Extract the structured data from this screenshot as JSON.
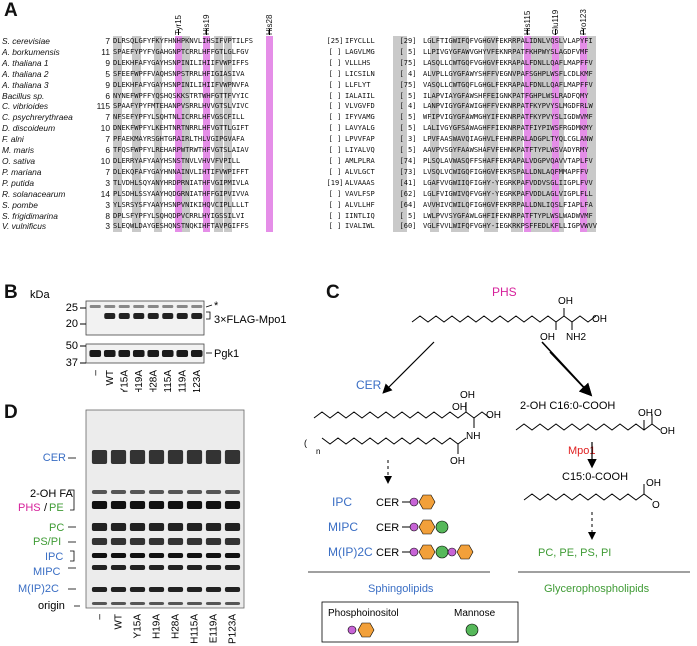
{
  "panels": {
    "a": "A",
    "b": "B",
    "c": "C",
    "d": "D"
  },
  "alignment": {
    "residue_markers": [
      "Tyr15",
      "His19",
      "His28",
      "His115",
      "Glu119",
      "Pro123"
    ],
    "rows": [
      {
        "species": "S. cerevisiae",
        "start": "7",
        "seg1": "DLRSQLGFYFKYFHNHPKNVLIHSIFVPTILFS",
        "gap1": "[25]",
        "seg2": "IFYCLLL",
        "gap2": "[29]",
        "seg3": "LGLFTIGWIFQFVGHGVFEKRRPALIDNLVQSLVLAPYFI"
      },
      {
        "species": "A. borkumensis",
        "start": "11",
        "seg1": "SPAEFYPYFYGAHGNPTCRRLHFFGTLGLFGV",
        "gap1": "[ ]",
        "seg2": "LAGVLMG",
        "gap2": "[ 5]",
        "seg3": "LLPIVGYGFAWVGHYVFEKNRPATFKHPWYSLAGDFVMF"
      },
      {
        "species": "A. thaliana 1",
        "start": "9",
        "seg1": "DLEKHFAFYGAYHSNPINILIHIIFVWPIFFS",
        "gap1": "[ ]",
        "seg2": "VLLLHS",
        "gap2": "[75]",
        "seg3": "LASQLLCWTGQFVGHGVFEKRAPALFDNLLQAFLMAPFFV"
      },
      {
        "species": "A. thaliana 2",
        "start": "5",
        "seg1": "SFEEFWPFFVAQHSNPSTRRLHFIGIASIVA",
        "gap1": "[ ]",
        "seg2": "LICSILN",
        "gap2": "[ 4]",
        "seg3": "ALVPLLGYGFAWYSHFFVEGNVPAFSGHPLWSFLCDLKMF"
      },
      {
        "species": "A. thaliana 3",
        "start": "9",
        "seg1": "DLEKHFAFYGAYHSNPINILIHIIFVWPNVFA",
        "gap1": "[ ]",
        "seg2": "LLFLYT",
        "gap2": "[75]",
        "seg3": "VASQLLCWTGQFLGHGLFEKRAPALFDNLLQAFLMAPFFV"
      },
      {
        "species": "Bacillus sp.",
        "start": "6",
        "seg1": "NYNEFWPFFYQSHQSKKSTRTWHFGTTFVYIC",
        "gap1": "[ ]",
        "seg2": "IALAIIL",
        "gap2": "[ 5]",
        "seg3": "ILAPVIAYGFAWSHFFEIGNKPATFGHPLWSLRADFQMY"
      },
      {
        "species": "C. vibrioides",
        "start": "115",
        "seg1": "SPAAFYPYFMTEHANPVSRRLHVVGTSLVIVC",
        "gap1": "[ ]",
        "seg2": "VLVGVFD",
        "gap2": "[ 4]",
        "seg3": "LANPVIGYGFAWIGHFFVEKNRPATFKYPVYSLMGDFRLW"
      },
      {
        "species": "C. psychrerythraea",
        "start": "7",
        "seg1": "NFSEFYPFYLSQHTNLICRRLHFVGSCFILL",
        "gap1": "[ ]",
        "seg2": "IFYVAMG",
        "gap2": "[ 5]",
        "seg3": "WFIPVIGYGFAWMGHYIFEKNRPATFKYPVYSLIGDWVMF"
      },
      {
        "species": "D. discoideum",
        "start": "10",
        "seg1": "DNEKFWPFYLKEHTNRTNRRLHFVGTTLGIFT",
        "gap1": "[ ]",
        "seg2": "LAVYALG",
        "gap2": "[ 5]",
        "seg3": "LALIVGYGFSAWAGHFFIEKNRPATFIYPIWSFRGDMKMY"
      },
      {
        "species": "F. alni",
        "start": "7",
        "seg1": "PFAEKMAYRSGHTGRAIRLTHLVGIPGVAFA",
        "gap1": "[ ]",
        "seg2": "LPVVFAP",
        "gap2": "[ 3]",
        "seg3": "LPVFAASWAVQIAGHVLFEHNRPALADGPLTYQLCGLANW"
      },
      {
        "species": "M. maris",
        "start": "6",
        "seg1": "TFQSFWPFYLREHARPWTRWTHFVGTSLAIAV",
        "gap1": "[ ]",
        "seg2": "LIYALVQ",
        "gap2": "[ 5]",
        "seg3": "AAVPVSGYFAAWSHAFVFEHNKPATFTYPLWSVADYRMY"
      },
      {
        "species": "O. sativa",
        "start": "10",
        "seg1": "DLERRYAFYAAYHSNSTNVLVHVVFVPILL",
        "gap1": "[ ]",
        "seg2": "AMLPLRA",
        "gap2": "[74]",
        "seg3": "PLSQLAVWASQFFSHAFFEKRAPALVDGPVQAVVTAPLFV"
      },
      {
        "species": "P. mariana",
        "start": "7",
        "seg1": "DLEKQFAFYGAYHNNAINVLIHTIFVWPIFFT",
        "gap1": "[ ]",
        "seg2": "ALVLGCT",
        "gap2": "[73]",
        "seg3": "LVSQLVCWIGQFIGHGVFEKRSPALLDNLAQFMMAPFFV"
      },
      {
        "species": "P. putida",
        "start": "3",
        "seg1": "TLVDHLSQYANYHRDPRNIATHFVGIPMIVLA",
        "gap1": "[19]",
        "seg2": "ALVAAAS",
        "gap2": "[41]",
        "seg3": "LGAFVVGWIIQFIGHY-YEGRKPAFVDDVSGLIIGPLFVV"
      },
      {
        "species": "R. solanacearum",
        "start": "14",
        "seg1": "PLSDHLSSYAAYHQDGRNIATHFFGIPVIVVA",
        "gap1": "[ ]",
        "seg2": "VAVLFSP",
        "gap2": "[62]",
        "seg3": "LGLFVIGWIVQFVGHY-YEGRKPAFVDDLAGLVIGPLFLL"
      },
      {
        "species": "S. pombe",
        "start": "3",
        "seg1": "YLSRSYSFYAAYHSNPVNIKIHQVCIPLLLLT",
        "gap1": "[ ]",
        "seg2": "ALVLLHF",
        "gap2": "[64]",
        "seg3": "AVVHIVCWILQFIGHGVFEKRRPALLDNLIQSLFIAPLFA"
      },
      {
        "species": "S. frigidimarina",
        "start": "8",
        "seg1": "DPLSFYPFYLSQHQDPVCRRLHYIGSSILVI",
        "gap1": "[ ]",
        "seg2": "IINTLIQ",
        "gap2": "[ 5]",
        "seg3": "LWLPVVSYGFAWLGHFIFEKNRPATFTYPLWSLWADWVMF"
      },
      {
        "species": "V. vulnificus",
        "start": "3",
        "seg1": "SLEQWLDAYGESHQNSTNQKIHFTAVPGIFFS",
        "gap1": "[ ]",
        "seg2": "IVALIWL",
        "gap2": "[60]",
        "seg3": "VGLFVVLWIFQFVGHY-IEGKRKPSFFEDLKFLLIGPVWVV"
      }
    ]
  },
  "western_blot": {
    "y_unit": "kDa",
    "markers": [
      "25",
      "20",
      "50",
      "37"
    ],
    "asterisk": "*",
    "band_label": "3×FLAG-Mpo1",
    "loading_label": "Pgk1",
    "lanes": [
      "–",
      "WT",
      "Y15A",
      "H19A",
      "H28A",
      "H115A",
      "E119A",
      "P123A"
    ]
  },
  "pathway": {
    "phs": "PHS",
    "cer": "CER",
    "fa_2oh": "2-OH C16:0-COOH",
    "mpo1": "Mpo1",
    "fa_c15": "C15:0-COOH",
    "n_label": "n",
    "glycero_products": "PC, PE, PS, PI",
    "sphingo_lipids": [
      {
        "name": "IPC",
        "prefix": "CER"
      },
      {
        "name": "MIPC",
        "prefix": "CER"
      },
      {
        "name": "M(IP)2C",
        "prefix": "CER"
      }
    ],
    "sphingolipids_caption": "Sphingolipids",
    "glycero_caption": "Glycerophospholipids",
    "legend": {
      "phosphoinositol": "Phosphoinositol",
      "mannose": "Mannose"
    },
    "atoms": {
      "oh": "OH",
      "nh2": "NH2",
      "nh": "NH",
      "o": "O"
    },
    "colors": {
      "blue": "#3a6ec4",
      "magenta": "#d6219b",
      "green": "#3f9b35",
      "red": "#e02020",
      "orange": "#f2a03a",
      "purple": "#c764d6",
      "mannose": "#56b85a"
    }
  },
  "tlc": {
    "bands": [
      {
        "label": "CER",
        "color": "blue"
      },
      {
        "label": "2-OH FA",
        "color": "black"
      },
      {
        "label": "PHS",
        "color": "magenta"
      },
      {
        "label": "/",
        "color": "black"
      },
      {
        "label": "PE",
        "color": "green"
      },
      {
        "label": "PC",
        "color": "green"
      },
      {
        "label": "PS/PI",
        "color": "green"
      },
      {
        "label": "IPC",
        "color": "blue"
      },
      {
        "label": "MIPC",
        "color": "blue"
      },
      {
        "label": "M(IP)2C",
        "color": "blue"
      },
      {
        "label": "origin",
        "color": "black"
      }
    ],
    "lanes": [
      "–",
      "WT",
      "Y15A",
      "H19A",
      "H28A",
      "H115A",
      "E119A",
      "P123A"
    ]
  }
}
